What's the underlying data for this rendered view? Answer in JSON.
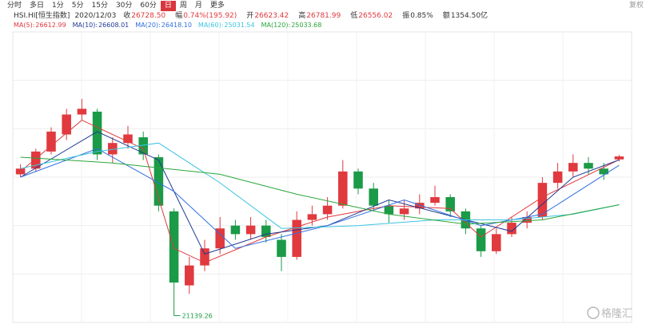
{
  "header": {
    "tabs": [
      "分时",
      "多日",
      "1分",
      "5分",
      "15分",
      "30分",
      "60分",
      "日",
      "周",
      "月",
      "更多"
    ],
    "active_tab": 7,
    "adjust": "复权",
    "symbol": "HSI.HI[恒生指数]",
    "date": "2020/12/03",
    "fields": [
      {
        "label": "收",
        "value": "26728.50",
        "color": "#e0393e"
      },
      {
        "label": "幅",
        "value": "0.74%(195.92)",
        "color": "#e0393e"
      },
      {
        "label": "开",
        "value": "26623.42",
        "color": "#e0393e"
      },
      {
        "label": "高",
        "value": "26781.99",
        "color": "#e0393e"
      },
      {
        "label": "低",
        "value": "26556.02",
        "color": "#e0393e"
      },
      {
        "label": "振",
        "value": "0.85%",
        "color": "#333333"
      },
      {
        "label": "额",
        "value": "1354.50亿",
        "color": "#333333"
      }
    ],
    "watermark": "格隆汇"
  },
  "chart_data": {
    "type": "candlestick",
    "ylim": [
      20900,
      31100
    ],
    "grid": true,
    "up_color": "#e0393e",
    "down_color": "#1b9a47",
    "open": [
      26100,
      26300,
      26900,
      27500,
      28200,
      28300,
      26800,
      27200,
      27400,
      26700,
      24800,
      22200,
      22900,
      23500,
      24300,
      24000,
      24300,
      23800,
      23200,
      24500,
      24700,
      25000,
      26200,
      25600,
      25000,
      24700,
      24900,
      25100,
      25300,
      24800,
      24200,
      23400,
      24000,
      24400,
      24600,
      25800,
      26200,
      26500,
      26300,
      26623.42
    ],
    "high": [
      26450,
      27000,
      27750,
      28400,
      28750,
      28400,
      27400,
      27800,
      27600,
      26800,
      24900,
      23200,
      23800,
      24600,
      24500,
      24600,
      24500,
      24000,
      24800,
      25000,
      25300,
      26600,
      26300,
      25800,
      25200,
      25200,
      25400,
      25700,
      25400,
      24900,
      24300,
      24200,
      24600,
      24800,
      26000,
      26500,
      26800,
      26700,
      26500,
      26781.99
    ],
    "low": [
      26000,
      26200,
      26800,
      27300,
      28000,
      26600,
      26500,
      27000,
      26600,
      24800,
      21139.26,
      21900,
      22700,
      23300,
      23800,
      23800,
      23700,
      22700,
      23100,
      24300,
      24500,
      24900,
      25400,
      24800,
      24400,
      24500,
      24700,
      25000,
      24600,
      24000,
      23200,
      23300,
      23900,
      24200,
      24500,
      25600,
      26000,
      26100,
      25900,
      26556.02
    ],
    "close": [
      26300,
      26900,
      27600,
      28200,
      28400,
      26800,
      27200,
      27500,
      26800,
      25000,
      22300,
      22900,
      23500,
      24200,
      24000,
      24300,
      23900,
      23200,
      24500,
      24700,
      25000,
      26200,
      25600,
      25000,
      24700,
      24900,
      25100,
      25300,
      24800,
      24200,
      23400,
      24000,
      24400,
      24600,
      25800,
      26200,
      26500,
      26300,
      26100,
      26728.5
    ],
    "min_index": 10,
    "series": [
      {
        "name": "MA(5):",
        "legend_value": "26612.99",
        "color": "#e0393e",
        "x": [
          0,
          4,
          8,
          10,
          12,
          16,
          20,
          24,
          28,
          30,
          34,
          39
        ],
        "values": [
          26200,
          28000,
          27000,
          23500,
          23000,
          23900,
          24600,
          25000,
          24900,
          23900,
          25300,
          26612.99
        ]
      },
      {
        "name": "MA(10):",
        "legend_value": "26608.01",
        "color": "#1f3a93",
        "x": [
          0,
          5,
          9,
          12,
          16,
          20,
          24,
          29,
          32,
          36,
          39
        ],
        "values": [
          26000,
          27600,
          26600,
          23300,
          24000,
          24300,
          25200,
          24500,
          24100,
          26000,
          26608.01
        ]
      },
      {
        "name": "MA(20):",
        "legend_value": "26418.10",
        "color": "#2f6fe0",
        "x": [
          0,
          5,
          10,
          14,
          20,
          25,
          30,
          34,
          39
        ],
        "values": [
          26000,
          27000,
          25500,
          23500,
          24300,
          25200,
          24300,
          24700,
          26418.1
        ]
      },
      {
        "name": "MA(60):",
        "legend_value": "25031.54",
        "color": "#3bc4e0",
        "x": [
          0,
          5,
          9,
          13,
          17,
          22,
          27,
          32,
          36,
          39
        ],
        "values": [
          26300,
          26900,
          27200,
          25800,
          24200,
          24300,
          24500,
          24500,
          24700,
          25031.54
        ]
      },
      {
        "name": "MA(120):",
        "legend_value": "25033.68",
        "color": "#2aa63a",
        "x": [
          0,
          6,
          13,
          18,
          24,
          29,
          34,
          39
        ],
        "values": [
          26700,
          26500,
          26100,
          25400,
          24700,
          24350,
          24500,
          25033.68
        ]
      }
    ]
  }
}
